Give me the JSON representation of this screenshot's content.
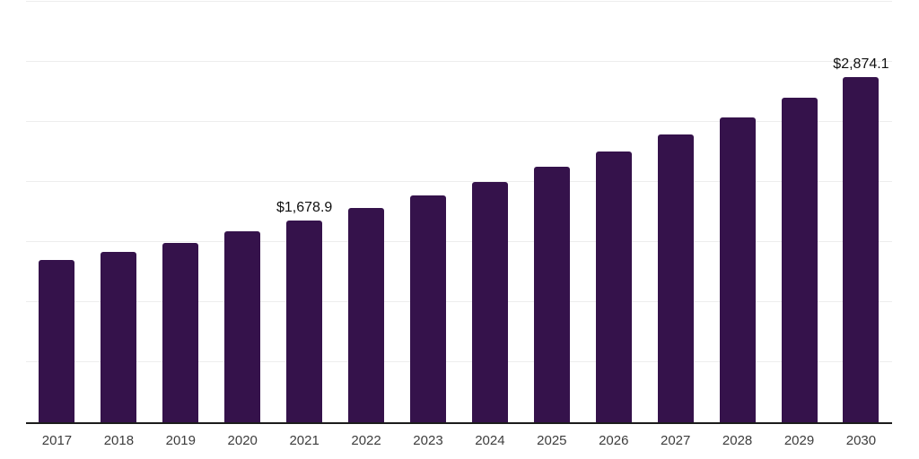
{
  "chart_data": {
    "type": "bar",
    "title": "",
    "xlabel": "",
    "ylabel": "",
    "categories": [
      "2017",
      "2018",
      "2019",
      "2020",
      "2021",
      "2022",
      "2023",
      "2024",
      "2025",
      "2026",
      "2027",
      "2028",
      "2029",
      "2030"
    ],
    "values": [
      1350,
      1420,
      1495,
      1590,
      1678.9,
      1780,
      1885,
      2000,
      2125,
      2255,
      2395,
      2540,
      2700,
      2874.1
    ],
    "point_labels": [
      "",
      "",
      "",
      "",
      "$1,678.9",
      "",
      "",
      "",
      "",
      "",
      "",
      "",
      "",
      "$2,874.1"
    ],
    "ylim": [
      0,
      3500
    ],
    "gridline_step": 500,
    "grid": "horizontal-only",
    "legend": "none",
    "y_tick_labels_visible": false,
    "bar_color": "#35124B",
    "gridline_color": "#EDEDED",
    "axis_line_color": "#1C1C1C",
    "tick_label_color": "#3D3D3D",
    "data_label_color": "#101010",
    "background_color": "#FFFFFF"
  }
}
